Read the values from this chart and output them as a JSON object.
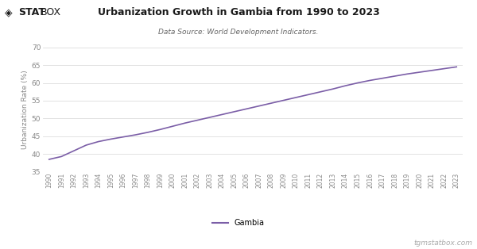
{
  "title": "Urbanization Growth in Gambia from 1990 to 2023",
  "subtitle": "Data Source: World Development Indicators.",
  "ylabel": "Urbanization Rate (%)",
  "watermark": "tgmstatbox.com",
  "legend_label": "Gambia",
  "line_color": "#7B5EA7",
  "background_color": "#ffffff",
  "plot_bg_color": "#ffffff",
  "grid_color": "#dddddd",
  "tick_color": "#888888",
  "ylim": [
    35,
    70
  ],
  "yticks": [
    35,
    40,
    45,
    50,
    55,
    60,
    65,
    70
  ],
  "years": [
    1990,
    1991,
    1992,
    1993,
    1994,
    1995,
    1996,
    1997,
    1998,
    1999,
    2000,
    2001,
    2002,
    2003,
    2004,
    2005,
    2006,
    2007,
    2008,
    2009,
    2010,
    2011,
    2012,
    2013,
    2014,
    2015,
    2016,
    2017,
    2018,
    2019,
    2020,
    2021,
    2022,
    2023
  ],
  "values": [
    38.5,
    39.3,
    40.9,
    42.5,
    43.5,
    44.2,
    44.8,
    45.4,
    46.1,
    46.9,
    47.8,
    48.7,
    49.5,
    50.3,
    51.1,
    51.9,
    52.7,
    53.5,
    54.3,
    55.1,
    55.9,
    56.7,
    57.5,
    58.3,
    59.2,
    60.0,
    60.7,
    61.3,
    61.9,
    62.5,
    63.0,
    63.5,
    64.0,
    64.5
  ],
  "logo_diamond": "◈",
  "logo_stat": "STAT",
  "logo_box": "BOX"
}
